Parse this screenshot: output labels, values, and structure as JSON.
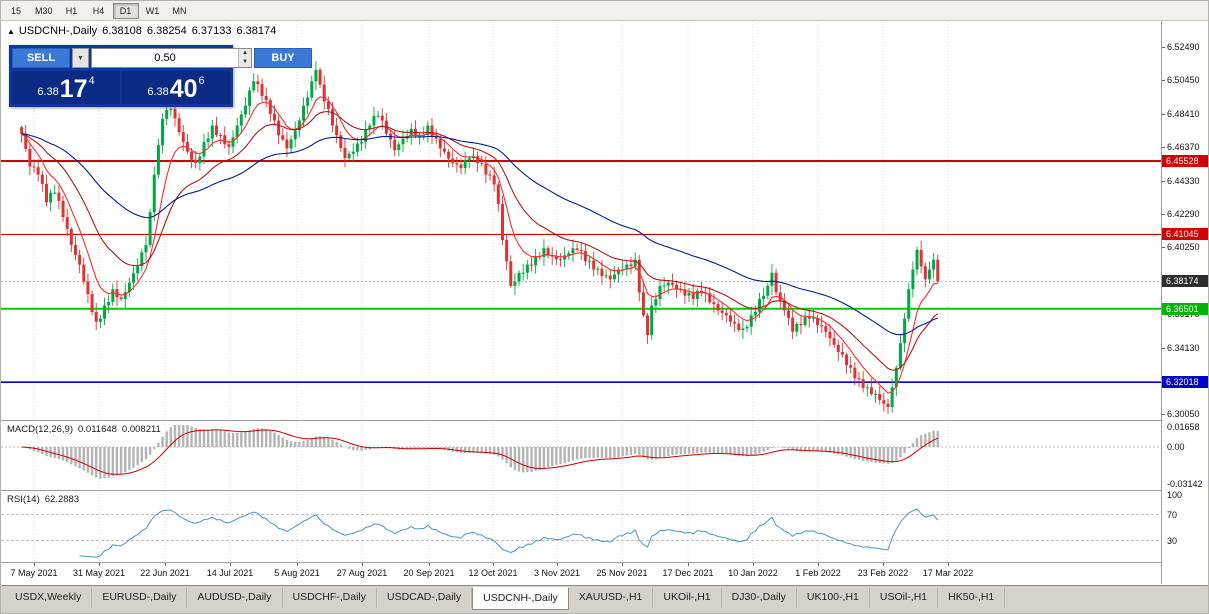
{
  "toolbar": {
    "periods": [
      "15",
      "M30",
      "H1",
      "H4",
      "D1",
      "W1",
      "MN"
    ],
    "active_period": "D1"
  },
  "chart_header": {
    "collapse_icon": "▲",
    "title": "USDCNH-,Daily",
    "open": "6.38108",
    "high": "6.38254",
    "low": "6.37133",
    "close": "6.38174"
  },
  "trade_widget": {
    "sell_label": "SELL",
    "buy_label": "BUY",
    "volume": "0.50",
    "dropdown_icon": "▼",
    "spin_up_icon": "▲",
    "spin_down_icon": "▼",
    "sell_price": {
      "prefix": "6.38",
      "big": "17",
      "sup": "4"
    },
    "buy_price": {
      "prefix": "6.38",
      "big": "40",
      "sup": "6"
    }
  },
  "price_axis": {
    "labels": [
      "6.52490",
      "6.50450",
      "6.48410",
      "6.46370",
      "6.44330",
      "6.42290",
      "6.40250",
      "6.36170",
      "6.34130",
      "6.30050"
    ],
    "tags": [
      {
        "value": "6.45528",
        "bg": "#d20000"
      },
      {
        "value": "6.41045",
        "bg": "#d20000"
      },
      {
        "value": "6.38174",
        "bg": "#2d2d2d"
      },
      {
        "value": "6.36501",
        "bg": "#00b400"
      },
      {
        "value": "6.32018",
        "bg": "#0000c8"
      }
    ]
  },
  "macd": {
    "name": "MACD(12,26,9)",
    "value": "0.011648",
    "signal": "0.008211",
    "axis_labels": [
      "0.01658",
      "0.00",
      "-0.03142"
    ]
  },
  "rsi": {
    "name": "RSI(14)",
    "value": "62.2883",
    "axis_labels": [
      "100",
      "70",
      "30"
    ]
  },
  "date_axis": [
    "7 May 2021",
    "31 May 2021",
    "22 Jun 2021",
    "14 Jul 2021",
    "5 Aug 2021",
    "27 Aug 2021",
    "20 Sep 2021",
    "12 Oct 2021",
    "3 Nov 2021",
    "25 Nov 2021",
    "17 Dec 2021",
    "10 Jan 2022",
    "1 Feb 2022",
    "23 Feb 2022",
    "17 Mar 2022"
  ],
  "bottom_tabs": {
    "active": "USDCNH-,Daily",
    "items": [
      "USDX,Weekly",
      "EURUSD-,Daily",
      "AUDUSD-,Daily",
      "USDCHF-,Daily",
      "USDCAD-,Daily",
      "USDCNH-,Daily",
      "XAUUSD-,H1",
      "UKOil-,H1",
      "DJ30-,Daily",
      "UK100-,H1",
      "USOil-,H1",
      "HK50-,H1"
    ],
    "tab_note": ""
  },
  "chart_data": {
    "type": "candlestick",
    "symbol": "USDCNH-",
    "timeframe": "Daily",
    "last_bar": {
      "open": 6.38108,
      "high": 6.38254,
      "low": 6.37133,
      "close": 6.38174
    },
    "current_price": 6.38174,
    "y_axis_range": [
      6.297,
      6.541
    ],
    "style": {
      "up_color": "#00a843",
      "down_color": "#e03232",
      "background": "#ffffff",
      "grid_color": "#dcdcdc"
    },
    "horizontal_levels": [
      {
        "price": 6.45528,
        "color": "#d20000",
        "width": 2,
        "style": "solid"
      },
      {
        "price": 6.41045,
        "color": "#d20000",
        "width": 1.2,
        "style": "solid"
      },
      {
        "price": 6.36501,
        "color": "#00d000",
        "width": 2,
        "style": "solid"
      },
      {
        "price": 6.32018,
        "color": "#0000c8",
        "width": 1.6,
        "style": "solid"
      }
    ],
    "moving_averages": [
      {
        "name": "fast-ma",
        "period": 8,
        "color": "#ff2a2a"
      },
      {
        "name": "medium-ma",
        "period": 21,
        "color": "#b01818"
      },
      {
        "name": "slow-ma",
        "period": 55,
        "color": "#001e96"
      }
    ],
    "indicators": [
      {
        "type": "macd",
        "label": "MACD(12,26,9)",
        "macd_value": 0.011648,
        "signal_value": 0.008211,
        "axis_range": [
          -0.0345,
          0.0185
        ]
      },
      {
        "type": "rsi",
        "label": "RSI(14)",
        "value": 62.2883,
        "levels": [
          70,
          30
        ],
        "axis_range": [
          0,
          100
        ]
      }
    ],
    "candles_approx": {
      "count": 222,
      "note": "close-price waypoints [index, price] estimated from pixels; OHLC synthesized deterministically",
      "waypoints": [
        [
          0,
          6.472
        ],
        [
          2,
          6.452
        ],
        [
          4,
          6.447
        ],
        [
          6,
          6.43
        ],
        [
          8,
          6.436
        ],
        [
          10,
          6.421
        ],
        [
          12,
          6.404
        ],
        [
          14,
          6.392
        ],
        [
          16,
          6.374
        ],
        [
          18,
          6.357
        ],
        [
          20,
          6.367
        ],
        [
          22,
          6.377
        ],
        [
          24,
          6.371
        ],
        [
          26,
          6.381
        ],
        [
          28,
          6.391
        ],
        [
          30,
          6.404
        ],
        [
          31,
          6.424
        ],
        [
          32,
          6.447
        ],
        [
          33,
          6.465
        ],
        [
          34,
          6.481
        ],
        [
          36,
          6.487
        ],
        [
          38,
          6.473
        ],
        [
          40,
          6.461
        ],
        [
          42,
          6.454
        ],
        [
          44,
          6.467
        ],
        [
          46,
          6.477
        ],
        [
          48,
          6.471
        ],
        [
          50,
          6.464
        ],
        [
          52,
          6.477
        ],
        [
          54,
          6.489
        ],
        [
          56,
          6.504
        ],
        [
          58,
          6.495
        ],
        [
          60,
          6.484
        ],
        [
          62,
          6.471
        ],
        [
          64,
          6.463
        ],
        [
          66,
          6.474
        ],
        [
          68,
          6.489
        ],
        [
          70,
          6.504
        ],
        [
          71,
          6.511
        ],
        [
          72,
          6.502
        ],
        [
          74,
          6.487
        ],
        [
          76,
          6.471
        ],
        [
          78,
          6.457
        ],
        [
          80,
          6.461
        ],
        [
          82,
          6.467
        ],
        [
          84,
          6.477
        ],
        [
          86,
          6.483
        ],
        [
          88,
          6.472
        ],
        [
          90,
          6.462
        ],
        [
          92,
          6.469
        ],
        [
          94,
          6.475
        ],
        [
          96,
          6.471
        ],
        [
          98,
          6.477
        ],
        [
          100,
          6.469
        ],
        [
          102,
          6.461
        ],
        [
          104,
          6.454
        ],
        [
          106,
          6.451
        ],
        [
          108,
          6.457
        ],
        [
          110,
          6.454
        ],
        [
          112,
          6.447
        ],
        [
          114,
          6.441
        ],
        [
          115,
          6.429
        ],
        [
          116,
          6.407
        ],
        [
          117,
          6.394
        ],
        [
          118,
          6.379
        ],
        [
          120,
          6.387
        ],
        [
          122,
          6.392
        ],
        [
          124,
          6.397
        ],
        [
          126,
          6.402
        ],
        [
          128,
          6.397
        ],
        [
          130,
          6.395
        ],
        [
          132,
          6.399
        ],
        [
          134,
          6.401
        ],
        [
          136,
          6.394
        ],
        [
          138,
          6.389
        ],
        [
          140,
          6.385
        ],
        [
          142,
          6.383
        ],
        [
          144,
          6.389
        ],
        [
          146,
          6.392
        ],
        [
          148,
          6.395
        ],
        [
          150,
          6.361
        ],
        [
          151,
          6.349
        ],
        [
          152,
          6.367
        ],
        [
          154,
          6.379
        ],
        [
          156,
          6.381
        ],
        [
          158,
          6.377
        ],
        [
          160,
          6.373
        ],
        [
          162,
          6.371
        ],
        [
          164,
          6.375
        ],
        [
          166,
          6.369
        ],
        [
          168,
          6.364
        ],
        [
          170,
          6.361
        ],
        [
          172,
          6.356
        ],
        [
          174,
          6.353
        ],
        [
          176,
          6.361
        ],
        [
          178,
          6.371
        ],
        [
          180,
          6.379
        ],
        [
          181,
          6.387
        ],
        [
          182,
          6.375
        ],
        [
          184,
          6.364
        ],
        [
          186,
          6.351
        ],
        [
          188,
          6.355
        ],
        [
          190,
          6.359
        ],
        [
          192,
          6.355
        ],
        [
          194,
          6.351
        ],
        [
          196,
          6.343
        ],
        [
          198,
          6.337
        ],
        [
          200,
          6.329
        ],
        [
          202,
          6.322
        ],
        [
          204,
          6.317
        ],
        [
          206,
          6.313
        ],
        [
          208,
          6.307
        ],
        [
          209,
          6.305
        ],
        [
          210,
          6.317
        ],
        [
          211,
          6.329
        ],
        [
          212,
          6.344
        ],
        [
          213,
          6.359
        ],
        [
          214,
          6.377
        ],
        [
          215,
          6.389
        ],
        [
          216,
          6.401
        ],
        [
          217,
          6.391
        ],
        [
          218,
          6.383
        ],
        [
          219,
          6.389
        ],
        [
          220,
          6.395
        ],
        [
          221,
          6.38174
        ]
      ]
    }
  }
}
